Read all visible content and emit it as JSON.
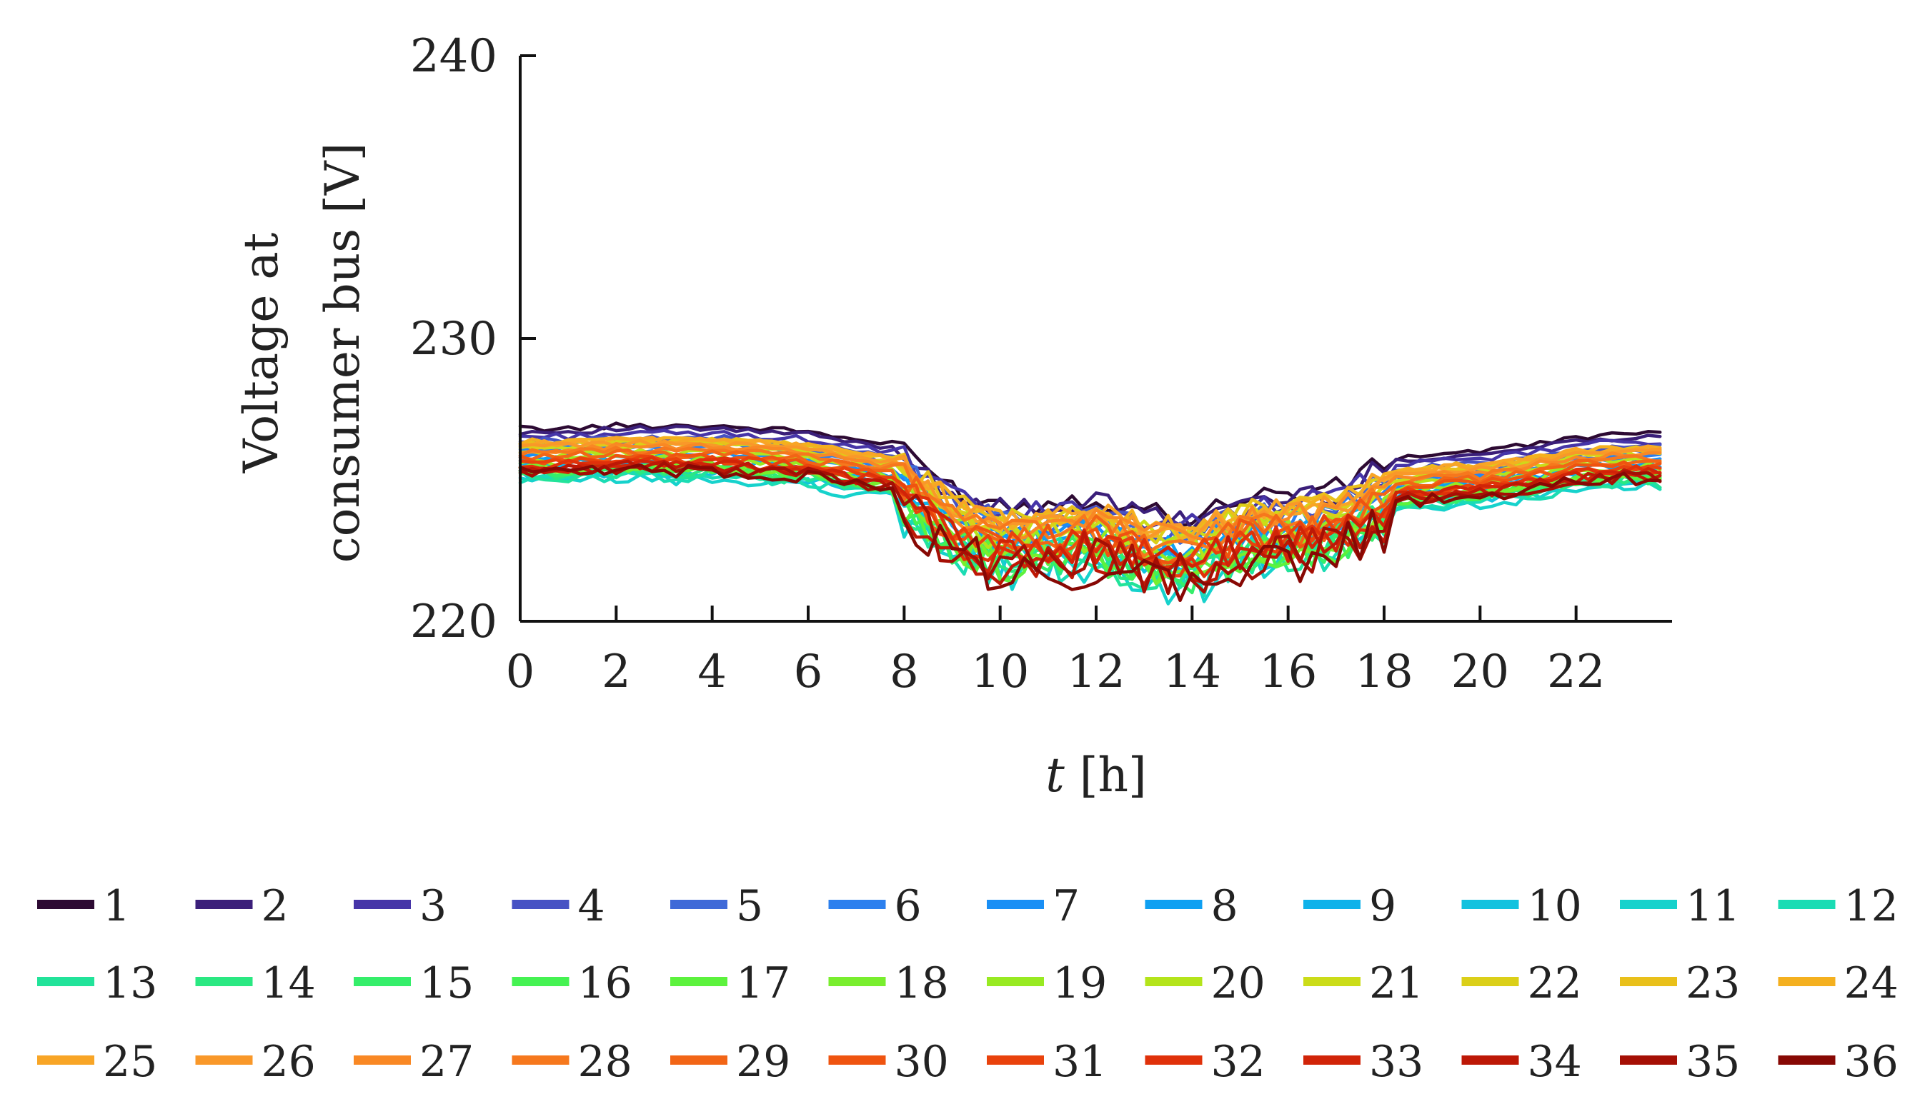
{
  "chart_data": {
    "type": "line",
    "title": "",
    "xlabel_italic": "t",
    "xlabel_rest": " [h]",
    "ylabel_line1": "Voltage at",
    "ylabel_line2": "consumer bus [V]",
    "xlim": [
      0,
      24
    ],
    "ylim": [
      220,
      240
    ],
    "xticks": [
      0,
      2,
      4,
      6,
      8,
      10,
      12,
      14,
      16,
      18,
      20,
      22
    ],
    "xtick_labels": [
      "0",
      "2",
      "4",
      "6",
      "8",
      "10",
      "12",
      "14",
      "16",
      "18",
      "20",
      "22"
    ],
    "yticks": [
      220,
      230,
      240
    ],
    "ytick_labels": [
      "220",
      "230",
      "240"
    ],
    "grid": false,
    "legend_position": "bottom",
    "sampling_step_h": 0.25,
    "profile_hourly": [
      225.8,
      225.8,
      225.9,
      225.9,
      225.9,
      225.8,
      225.7,
      225.4,
      225.2,
      223.8,
      223.2,
      223.3,
      223.5,
      223.0,
      222.8,
      223.5,
      223.6,
      223.8,
      224.7,
      224.9,
      225.0,
      225.2,
      225.5,
      225.6
    ],
    "series": [
      {
        "name": "1",
        "color": "#2d0a33",
        "offset": 1.05,
        "sag": 0.15,
        "noise": 0.4
      },
      {
        "name": "2",
        "color": "#3b1f7a",
        "offset": 0.95,
        "sag": 0.2,
        "noise": 0.4
      },
      {
        "name": "3",
        "color": "#4635a8",
        "offset": 0.8,
        "sag": 0.25,
        "noise": 0.45
      },
      {
        "name": "4",
        "color": "#4752c4",
        "offset": 0.65,
        "sag": 0.3,
        "noise": 0.45
      },
      {
        "name": "5",
        "color": "#3f6ad8",
        "offset": 0.5,
        "sag": 0.35,
        "noise": 0.5
      },
      {
        "name": "6",
        "color": "#2d80ee",
        "offset": 0.35,
        "sag": 0.4,
        "noise": 0.5
      },
      {
        "name": "7",
        "color": "#1a8ff5",
        "offset": 0.2,
        "sag": 0.45,
        "noise": 0.55
      },
      {
        "name": "8",
        "color": "#0fa0f2",
        "offset": 0.05,
        "sag": 0.5,
        "noise": 0.55
      },
      {
        "name": "9",
        "color": "#0fb2ea",
        "offset": -0.1,
        "sag": 0.55,
        "noise": 0.6
      },
      {
        "name": "10",
        "color": "#13c2df",
        "offset": -0.5,
        "sag": 0.6,
        "noise": 0.7
      },
      {
        "name": "11",
        "color": "#16d2cc",
        "offset": -0.7,
        "sag": 0.7,
        "noise": 0.9
      },
      {
        "name": "12",
        "color": "#1bdcb4",
        "offset": -0.6,
        "sag": 0.7,
        "noise": 0.8
      },
      {
        "name": "13",
        "color": "#22e39a",
        "offset": -0.5,
        "sag": 0.7,
        "noise": 0.8
      },
      {
        "name": "14",
        "color": "#2ae882",
        "offset": -0.4,
        "sag": 0.75,
        "noise": 0.75
      },
      {
        "name": "15",
        "color": "#35ee6a",
        "offset": -0.35,
        "sag": 0.8,
        "noise": 0.75
      },
      {
        "name": "16",
        "color": "#45f252",
        "offset": -0.3,
        "sag": 0.85,
        "noise": 0.7
      },
      {
        "name": "17",
        "color": "#5cf23d",
        "offset": -0.25,
        "sag": 0.9,
        "noise": 0.7
      },
      {
        "name": "18",
        "color": "#79ee2e",
        "offset": -0.2,
        "sag": 0.9,
        "noise": 0.65
      },
      {
        "name": "19",
        "color": "#98ea22",
        "offset": 0.0,
        "sag": 0.6,
        "noise": 0.6
      },
      {
        "name": "20",
        "color": "#b4e41b",
        "offset": 0.2,
        "sag": 0.4,
        "noise": 0.55
      },
      {
        "name": "21",
        "color": "#cbdc18",
        "offset": 0.4,
        "sag": 0.3,
        "noise": 0.5
      },
      {
        "name": "22",
        "color": "#dbcf18",
        "offset": 0.5,
        "sag": 0.25,
        "noise": 0.5
      },
      {
        "name": "23",
        "color": "#e9c01a",
        "offset": 0.55,
        "sag": 0.2,
        "noise": 0.45
      },
      {
        "name": "24",
        "color": "#f4b01f",
        "offset": 0.6,
        "sag": 0.2,
        "noise": 0.45
      },
      {
        "name": "25",
        "color": "#f8a526",
        "offset": 0.55,
        "sag": 0.2,
        "noise": 0.45
      },
      {
        "name": "26",
        "color": "#f99829",
        "offset": 0.45,
        "sag": 0.25,
        "noise": 0.45
      },
      {
        "name": "27",
        "color": "#f98824",
        "offset": 0.35,
        "sag": 0.3,
        "noise": 0.5
      },
      {
        "name": "28",
        "color": "#f6781d",
        "offset": 0.25,
        "sag": 0.4,
        "noise": 0.55
      },
      {
        "name": "29",
        "color": "#f26516",
        "offset": 0.15,
        "sag": 0.5,
        "noise": 0.6
      },
      {
        "name": "30",
        "color": "#ef5410",
        "offset": 0.05,
        "sag": 0.55,
        "noise": 0.6
      },
      {
        "name": "31",
        "color": "#e9420c",
        "offset": -0.05,
        "sag": 0.6,
        "noise": 0.65
      },
      {
        "name": "32",
        "color": "#e0310a",
        "offset": -0.1,
        "sag": 0.7,
        "noise": 0.7
      },
      {
        "name": "33",
        "color": "#d12408",
        "offset": -0.15,
        "sag": 0.8,
        "noise": 0.75
      },
      {
        "name": "34",
        "color": "#bd1806",
        "offset": -0.2,
        "sag": 0.9,
        "noise": 0.8
      },
      {
        "name": "35",
        "color": "#a50f05",
        "offset": -0.25,
        "sag": 1.0,
        "noise": 0.85
      },
      {
        "name": "36",
        "color": "#870804",
        "offset": -0.3,
        "sag": 1.1,
        "noise": 0.9
      }
    ]
  }
}
